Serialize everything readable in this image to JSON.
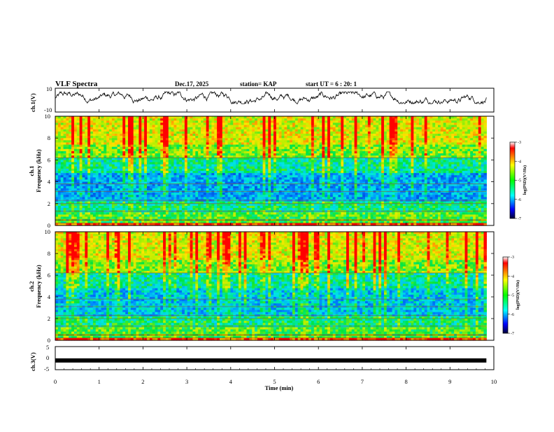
{
  "header": {
    "title": "VLF Spectra",
    "date": "Dec.17, 2025",
    "station": "station= KAP",
    "start": "start  UT  =  6 : 20: 1"
  },
  "chart_data": [
    {
      "type": "line",
      "name": "ch1-waveform",
      "ylabel": "ch.1(V)",
      "ylim": [
        -10,
        10
      ],
      "y_tick_labels": [
        "10",
        "-10"
      ],
      "xlim": [
        0,
        10
      ],
      "note": "noisy broadband waveform, mostly between about -2 and 6 V"
    },
    {
      "type": "heatmap",
      "name": "ch1-spectrogram",
      "ylabel": "ch.1\nFrequency (kHz)",
      "ylabel_line1": "ch.1",
      "ylabel_line2": "Frequency (kHz)",
      "ylim": [
        0,
        10
      ],
      "y_ticks": [
        0,
        2,
        4,
        6,
        8,
        10
      ],
      "y_tick_labels": [
        "0",
        "2",
        "4",
        "6",
        "8",
        "10"
      ],
      "xlim": [
        0,
        10
      ],
      "data_end_min": 9.83,
      "colorbar": {
        "label": "log(PSD)(V²/Hz)",
        "range": [
          -7,
          -3
        ],
        "ticks": [
          "-3",
          "-4",
          "-5",
          "-6",
          "-7"
        ]
      }
    },
    {
      "type": "heatmap",
      "name": "ch2-spectrogram",
      "ylabel": "ch.2\nFrequency (kHz)",
      "ylabel_line1": "ch.2",
      "ylabel_line2": "Frequency (kHz)",
      "ylim": [
        0,
        10
      ],
      "y_ticks": [
        0,
        2,
        4,
        6,
        8,
        10
      ],
      "y_tick_labels": [
        "0",
        "2",
        "4",
        "6",
        "8",
        "10"
      ],
      "xlim": [
        0,
        10
      ],
      "data_end_min": 9.83,
      "colorbar": {
        "label": "log(PSD)(V²/Hz)",
        "range": [
          -7,
          -3
        ],
        "ticks": [
          "-3",
          "-4",
          "-5",
          "-6",
          "-7"
        ]
      }
    },
    {
      "type": "line",
      "name": "ch3-waveform",
      "ylabel": "ch.3(V)",
      "ylim": [
        -5,
        5
      ],
      "y_tick_labels": [
        "5",
        "0",
        "-5"
      ],
      "x": [
        0,
        9.83
      ],
      "y": [
        -1,
        -1
      ],
      "note": "flat thick trace near -1 V",
      "xlim": [
        0,
        10
      ],
      "x_ticks": [
        0,
        1,
        2,
        3,
        4,
        5,
        6,
        7,
        8,
        9,
        10
      ],
      "x_tick_labels": [
        "0",
        "1",
        "2",
        "3",
        "4",
        "5",
        "6",
        "7",
        "8",
        "9",
        "10"
      ],
      "xlabel": "Time  (min)"
    }
  ]
}
